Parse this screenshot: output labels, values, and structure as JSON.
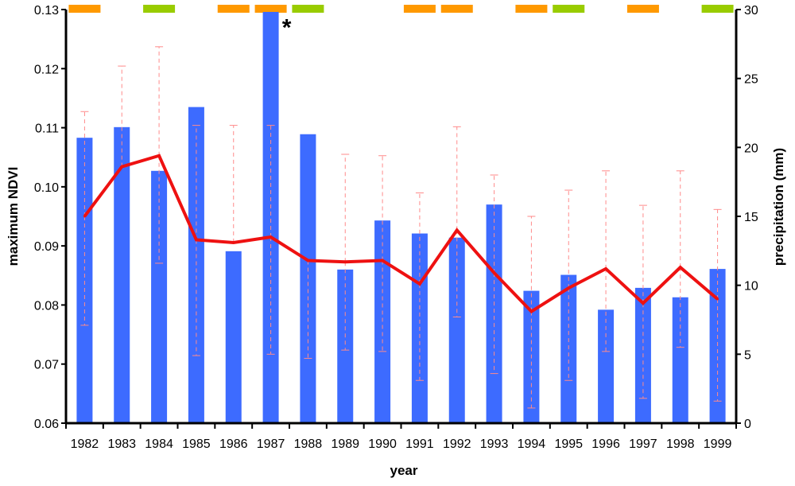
{
  "chart_data": {
    "type": "bar",
    "title": "",
    "xlabel": "year",
    "ylabel": "maximum NDVI",
    "y2label": "precipitation (mm)",
    "ylim": [
      0.06,
      0.13
    ],
    "y2lim": [
      0,
      30
    ],
    "yticks": [
      "0.06",
      "0.07",
      "0.08",
      "0.09",
      "0.10",
      "0.11",
      "0.12",
      "0.13"
    ],
    "y2ticks": [
      "0",
      "5",
      "10",
      "15",
      "20",
      "25",
      "30"
    ],
    "categories": [
      "1982",
      "1983",
      "1984",
      "1985",
      "1986",
      "1987",
      "1988",
      "1989",
      "1990",
      "1991",
      "1992",
      "1993",
      "1994",
      "1995",
      "1996",
      "1997",
      "1998",
      "1999"
    ],
    "series": [
      {
        "kind": "bar",
        "axis": "left",
        "color": "#3d6bff",
        "values": [
          0.1083,
          0.1101,
          0.1027,
          0.1135,
          0.0891,
          0.1296,
          0.1089,
          0.086,
          0.0943,
          0.0921,
          0.0914,
          0.097,
          0.0824,
          0.0851,
          0.0792,
          0.0829,
          0.0813,
          0.0861
        ]
      },
      {
        "kind": "errorbar",
        "axis": "right",
        "color": "#ff8a8a",
        "values": [
          15.0,
          18.6,
          19.4,
          13.3,
          13.1,
          13.5,
          11.8,
          11.7,
          11.8,
          10.1,
          14.0,
          10.9,
          8.1,
          9.8,
          11.2,
          8.7,
          11.3,
          9.0
        ],
        "lower": [
          7.1,
          null,
          11.6,
          4.9,
          null,
          5.0,
          4.7,
          5.3,
          5.2,
          3.1,
          7.7,
          3.6,
          1.1,
          3.1,
          5.2,
          1.8,
          5.5,
          1.6
        ],
        "upper": [
          22.6,
          25.9,
          27.3,
          21.6,
          21.6,
          21.6,
          null,
          19.5,
          19.4,
          16.7,
          21.5,
          18.0,
          15.0,
          16.9,
          18.3,
          15.8,
          18.3,
          15.5
        ]
      },
      {
        "kind": "line",
        "axis": "right",
        "color": "#ee1111",
        "values": [
          15.0,
          18.6,
          19.4,
          13.3,
          13.1,
          13.5,
          11.8,
          11.7,
          11.8,
          10.1,
          14.0,
          10.9,
          8.1,
          9.8,
          11.2,
          8.7,
          11.3,
          9.0
        ]
      }
    ],
    "top_markers": [
      {
        "year": "1982",
        "color": "#ff9900"
      },
      {
        "year": "1984",
        "color": "#99cc00"
      },
      {
        "year": "1986",
        "color": "#ff9900"
      },
      {
        "year": "1987",
        "color": "#ff9900"
      },
      {
        "year": "1988",
        "color": "#99cc00"
      },
      {
        "year": "1991",
        "color": "#ff9900"
      },
      {
        "year": "1992",
        "color": "#ff9900"
      },
      {
        "year": "1994",
        "color": "#ff9900"
      },
      {
        "year": "1995",
        "color": "#99cc00"
      },
      {
        "year": "1997",
        "color": "#ff9900"
      },
      {
        "year": "1999",
        "color": "#99cc00"
      }
    ],
    "annotations": [
      {
        "text": "*",
        "year": "1987",
        "value": 0.1286
      }
    ],
    "grid": false
  }
}
